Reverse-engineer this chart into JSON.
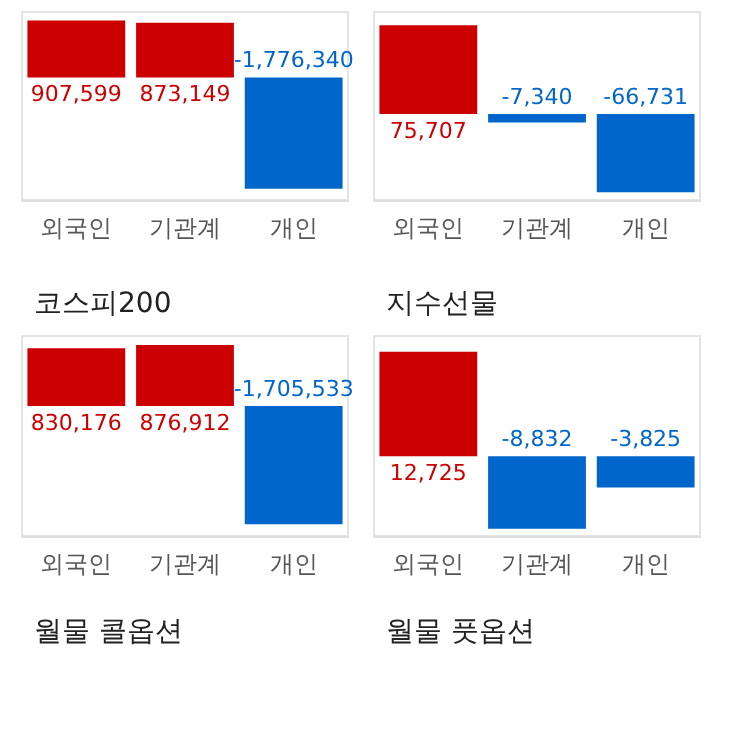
{
  "chart_data": [
    {
      "type": "bar",
      "categories": [
        "외국인",
        "기관계",
        "개인"
      ],
      "values": [
        907599,
        873149,
        -1776340
      ],
      "colors": [
        "#cc0000",
        "#cc0000",
        "#0066cc"
      ],
      "value_labels": [
        "907,599",
        "873,149",
        "-1,776,340"
      ]
    },
    {
      "type": "bar",
      "categories": [
        "외국인",
        "기관계",
        "개인"
      ],
      "values": [
        75707,
        -7340,
        -66731
      ],
      "colors": [
        "#cc0000",
        "#0066cc",
        "#0066cc"
      ],
      "value_labels": [
        "75,707",
        "-7,340",
        "-66,731"
      ]
    },
    {
      "type": "bar",
      "title": "코스피200",
      "categories": [
        "외국인",
        "기관계",
        "개인"
      ],
      "values": [
        830176,
        876912,
        -1705533
      ],
      "colors": [
        "#cc0000",
        "#cc0000",
        "#0066cc"
      ],
      "value_labels": [
        "830,176",
        "876,912",
        "-1,705,533"
      ]
    },
    {
      "type": "bar",
      "title": "지수선물",
      "categories": [
        "외국인",
        "기관계",
        "개인"
      ],
      "values": [
        12725,
        -8832,
        -3825
      ],
      "colors": [
        "#cc0000",
        "#0066cc",
        "#0066cc"
      ],
      "value_labels": [
        "12,725",
        "-8,832",
        "-3,825"
      ]
    },
    {
      "type": "other",
      "title": "월물 콜옵션"
    },
    {
      "type": "other",
      "title": "월물 풋옵션"
    }
  ]
}
